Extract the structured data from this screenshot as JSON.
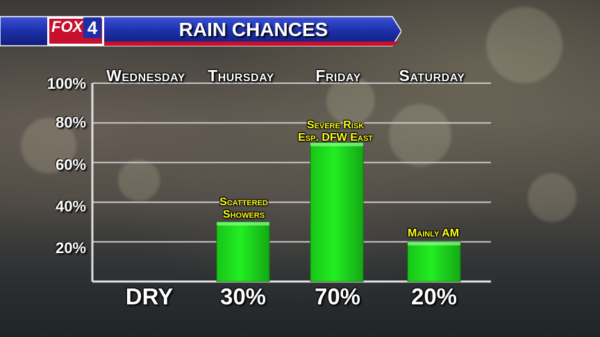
{
  "header": {
    "brand_text": "FOX",
    "brand_number": "4",
    "title": "RAIN CHANCES"
  },
  "colors": {
    "banner_blue": "#1c2fa8",
    "banner_red": "#c8102e",
    "bar_green": "#22ee22",
    "annotation_yellow": "#ffff1a"
  },
  "chart_data": {
    "type": "bar",
    "title": "RAIN CHANCES",
    "categories": [
      "Wednesday",
      "Thursday",
      "Friday",
      "Saturday"
    ],
    "values": [
      0,
      30,
      70,
      20
    ],
    "value_labels": [
      "DRY",
      "30%",
      "70%",
      "20%"
    ],
    "annotations": [
      "",
      "Scattered Showers",
      "Severe Risk Esp. DFW East",
      "Mainly AM"
    ],
    "annotation_lines": [
      [],
      [
        "Scattered",
        "Showers"
      ],
      [
        "Severe Risk",
        "Esp. DFW East"
      ],
      [
        "Mainly AM"
      ]
    ],
    "yticks": [
      "100%",
      "80%",
      "60%",
      "40%",
      "20%"
    ],
    "ytick_values": [
      100,
      80,
      60,
      40,
      20
    ],
    "ylim": [
      0,
      100
    ],
    "xlabel": "",
    "ylabel": "",
    "grid": true
  }
}
